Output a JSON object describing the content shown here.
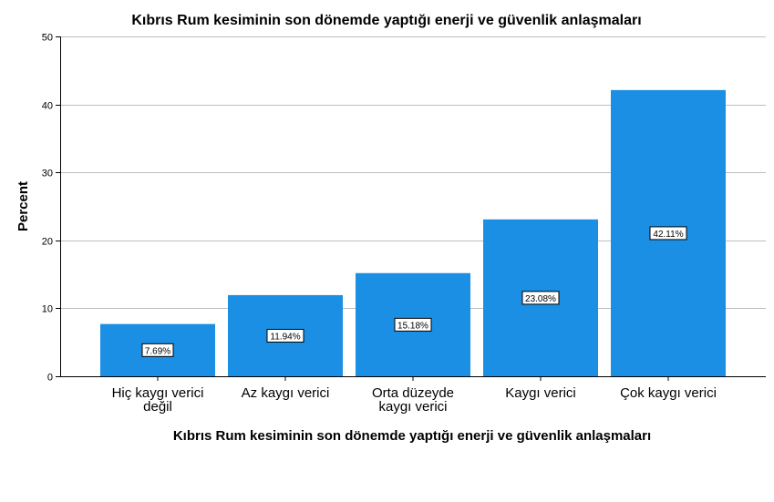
{
  "chart_data": {
    "type": "bar",
    "title": "Kıbrıs Rum kesiminin son dönemde yaptığı enerji ve güvenlik anlaşmaları",
    "xlabel": "Kıbrıs Rum kesiminin son dönemde yaptığı enerji ve güvenlik anlaşmaları",
    "ylabel": "Percent",
    "categories": [
      [
        "Hiç kaygı verici",
        "değil"
      ],
      [
        "Az kaygı verici"
      ],
      [
        "Orta düzeyde",
        "kaygı verici"
      ],
      [
        "Kaygı verici"
      ],
      [
        "Çok kaygı verici"
      ]
    ],
    "values": [
      7.69,
      11.94,
      15.18,
      23.08,
      42.11
    ],
    "data_labels": [
      "7.69%",
      "11.94%",
      "15.18%",
      "23.08%",
      "42.11%"
    ],
    "ylim": [
      0,
      50
    ],
    "yticks": [
      "0",
      "10",
      "20",
      "30",
      "40",
      "50"
    ],
    "grid": true,
    "bar_color": "#1a8fe3"
  }
}
